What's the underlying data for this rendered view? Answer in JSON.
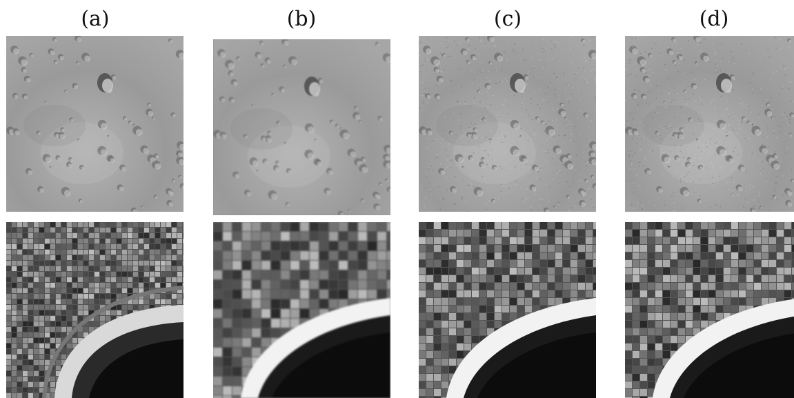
{
  "columns": [
    {
      "label": "(a)"
    },
    {
      "label": "(b)"
    },
    {
      "label": "(c)"
    },
    {
      "label": "(d)"
    }
  ],
  "rows": [
    {
      "subject": "lunar-crater-surface"
    },
    {
      "subject": "aerial-coastline-beach"
    }
  ],
  "colors": {
    "moon_base": "#9a9a9a",
    "moon_dark": "#5e5e5e",
    "moon_light": "#c8c8c8",
    "city_base": "#555555",
    "sand": "#d9d9d9",
    "sea": "#0c0c0c"
  }
}
